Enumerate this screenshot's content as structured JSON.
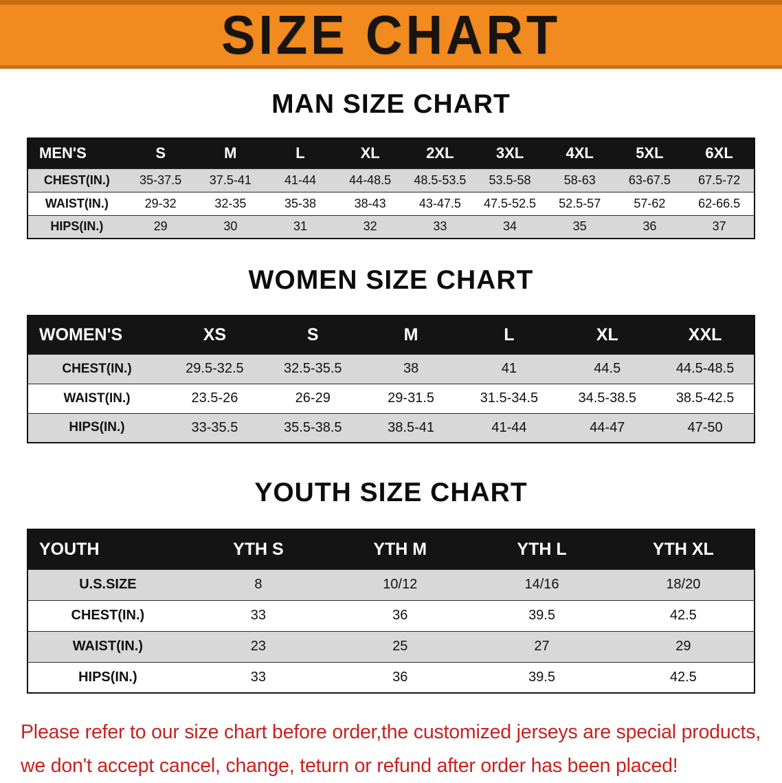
{
  "banner": {
    "title": "SIZE CHART"
  },
  "sections": [
    {
      "heading": "MAN SIZE CHART",
      "table": {
        "header": [
          "MEN'S",
          "S",
          "M",
          "L",
          "XL",
          "2XL",
          "3XL",
          "4XL",
          "5XL",
          "6XL"
        ],
        "rows": [
          {
            "label": "CHEST(IN.)",
            "values": [
              "35-37.5",
              "37.5-41",
              "41-44",
              "44-48.5",
              "48.5-53.5",
              "53.5-58",
              "58-63",
              "63-67.5",
              "67.5-72"
            ]
          },
          {
            "label": "WAIST(IN.)",
            "values": [
              "29-32",
              "32-35",
              "35-38",
              "38-43",
              "43-47.5",
              "47.5-52.5",
              "52.5-57",
              "57-62",
              "62-66.5"
            ]
          },
          {
            "label": "HIPS(IN.)",
            "values": [
              "29",
              "30",
              "31",
              "32",
              "33",
              "34",
              "35",
              "36",
              "37"
            ]
          }
        ]
      }
    },
    {
      "heading": "WOMEN SIZE CHART",
      "table": {
        "header": [
          "WOMEN'S",
          "XS",
          "S",
          "M",
          "L",
          "XL",
          "XXL"
        ],
        "rows": [
          {
            "label": "CHEST(IN.)",
            "values": [
              "29.5-32.5",
              "32.5-35.5",
              "38",
              "41",
              "44.5",
              "44.5-48.5"
            ]
          },
          {
            "label": "WAIST(IN.)",
            "values": [
              "23.5-26",
              "26-29",
              "29-31.5",
              "31.5-34.5",
              "34.5-38.5",
              "38.5-42.5"
            ]
          },
          {
            "label": "HIPS(IN.)",
            "values": [
              "33-35.5",
              "35.5-38.5",
              "38.5-41",
              "41-44",
              "44-47",
              "47-50"
            ]
          }
        ]
      }
    },
    {
      "heading": "YOUTH SIZE CHART",
      "table": {
        "header": [
          "YOUTH",
          "YTH S",
          "YTH M",
          "YTH L",
          "YTH XL"
        ],
        "rows": [
          {
            "label": "U.S.SIZE",
            "values": [
              "8",
              "10/12",
              "14/16",
              "18/20"
            ]
          },
          {
            "label": "CHEST(IN.)",
            "values": [
              "33",
              "36",
              "39.5",
              "42.5"
            ]
          },
          {
            "label": "WAIST(IN.)",
            "values": [
              "23",
              "25",
              "27",
              "29"
            ]
          },
          {
            "label": "HIPS(IN.)",
            "values": [
              "33",
              "36",
              "39.5",
              "42.5"
            ]
          }
        ]
      }
    }
  ],
  "disclaimer": {
    "line1": "Please refer to our size chart before order,the customized jerseys are special products,",
    "line2": "we don't accept cancel, change, teturn or refund after order has been placed!"
  },
  "colors": {
    "banner_orange": "#F18A1F",
    "banner_orange_dark": "#C96F0E",
    "table_header_black": "#141414",
    "row_stripe_gray": "#D8D8D8",
    "disclaimer_red": "#C9211E"
  }
}
